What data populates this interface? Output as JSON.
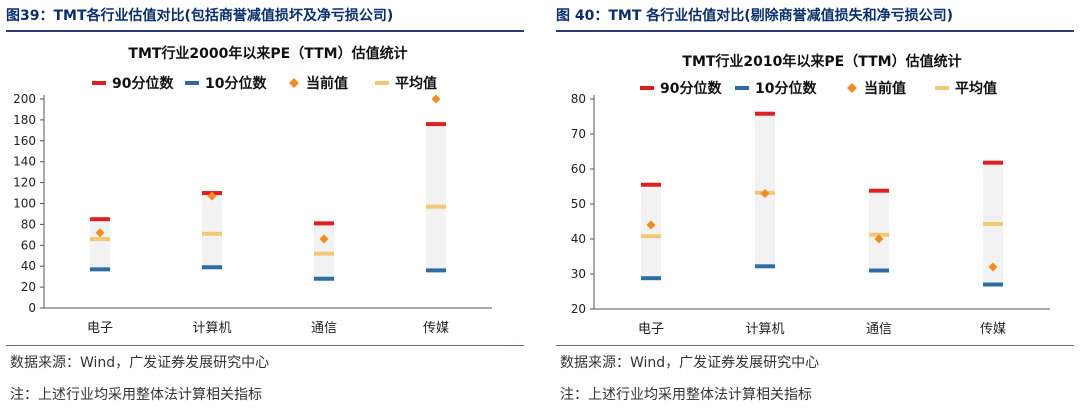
{
  "panels": [
    {
      "figure_title": "图39：TMT各行业估值对比(包括商誉减值损坏及净亏损公司)",
      "source": "数据来源：Wind，广发证券发展研究中心",
      "note": "注：上述行业均采用整体法计算相关指标"
    },
    {
      "figure_title": "图 40：TMT 各行业估值对比(剔除商誉减值损失和净亏损公司)",
      "source": "数据来源：Wind，广发证券发展研究中心",
      "note": "注：上述行业均采用整体法计算相关指标"
    }
  ],
  "chart_data": [
    {
      "type": "range",
      "title": "TMT行业2000年以来PE（TTM）估值统计",
      "categories": [
        "电子",
        "计算机",
        "通信",
        "传媒"
      ],
      "ylim": [
        0,
        200
      ],
      "yticks": [
        0,
        20,
        40,
        60,
        80,
        100,
        120,
        140,
        160,
        180,
        200
      ],
      "legend_position": "top",
      "series": [
        {
          "name": "90分位数",
          "color": "#e02020",
          "values": [
            85,
            110,
            81,
            176
          ]
        },
        {
          "name": "10分位数",
          "color": "#2e6da4",
          "values": [
            37,
            39,
            28,
            36
          ]
        },
        {
          "name": "当前值",
          "color": "#f08c28",
          "values": [
            72,
            107,
            66,
            200
          ]
        },
        {
          "name": "平均值",
          "color": "#f2c875",
          "values": [
            66,
            71,
            52,
            97
          ]
        }
      ]
    },
    {
      "type": "range",
      "title": "TMT行业2010年以来PE（TTM）估值统计",
      "categories": [
        "电子",
        "计算机",
        "通信",
        "传媒"
      ],
      "ylim": [
        20,
        80
      ],
      "yticks": [
        20,
        30,
        40,
        50,
        60,
        70,
        80
      ],
      "legend_position": "top",
      "series": [
        {
          "name": "90分位数",
          "color": "#e02020",
          "values": [
            55.5,
            75.8,
            53.8,
            61.8
          ]
        },
        {
          "name": "10分位数",
          "color": "#2e6da4",
          "values": [
            28.8,
            32.2,
            31.0,
            27.0
          ]
        },
        {
          "name": "当前值",
          "color": "#f08c28",
          "values": [
            44,
            53,
            40,
            32
          ]
        },
        {
          "name": "平均值",
          "color": "#f2c875",
          "values": [
            40.8,
            53.2,
            41.2,
            44.3
          ]
        }
      ]
    }
  ]
}
